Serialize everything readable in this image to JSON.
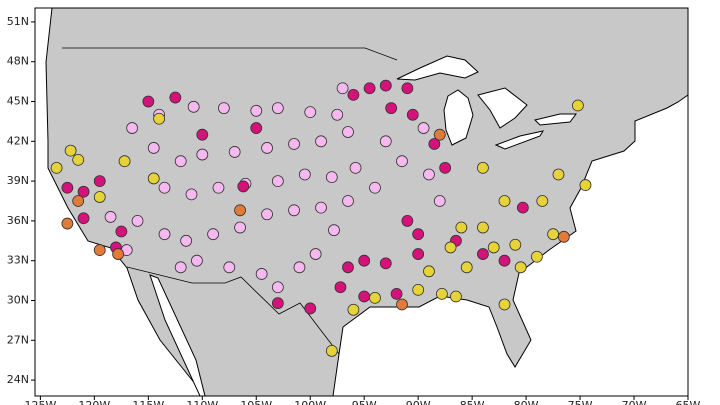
{
  "chart_data": {
    "type": "scatter",
    "xlim": [
      -125.5,
      -65
    ],
    "ylim": [
      22.8,
      52.05
    ],
    "xticks": [
      {
        "value": -125,
        "label": "125W"
      },
      {
        "value": -120,
        "label": "120W"
      },
      {
        "value": -115,
        "label": "115W"
      },
      {
        "value": -110,
        "label": "110W"
      },
      {
        "value": -105,
        "label": "105W"
      },
      {
        "value": -100,
        "label": "100W"
      },
      {
        "value": -95,
        "label": "95W"
      },
      {
        "value": -90,
        "label": "90W"
      },
      {
        "value": -85,
        "label": "85W"
      },
      {
        "value": -80,
        "label": "80W"
      },
      {
        "value": -75,
        "label": "75W"
      },
      {
        "value": -70,
        "label": "70W"
      },
      {
        "value": -65,
        "label": "65W"
      }
    ],
    "yticks": [
      {
        "value": 24,
        "label": "24N"
      },
      {
        "value": 27,
        "label": "27N"
      },
      {
        "value": 30,
        "label": "30N"
      },
      {
        "value": 33,
        "label": "33N"
      },
      {
        "value": 36,
        "label": "36N"
      },
      {
        "value": 39,
        "label": "39N"
      },
      {
        "value": 42,
        "label": "42N"
      },
      {
        "value": 45,
        "label": "45N"
      },
      {
        "value": 48,
        "label": "48N"
      },
      {
        "value": 51,
        "label": "51N"
      }
    ],
    "series": [
      {
        "color": "#f5b8ef",
        "x": [
          -110.8,
          -108,
          -105,
          -103,
          -100,
          -97.5,
          -96.5,
          -99,
          -101.5,
          -104,
          -107,
          -110,
          -112,
          -113.5,
          -111,
          -108.5,
          -106,
          -103,
          -100.5,
          -98,
          -95.8,
          -94,
          -96.5,
          -99,
          -101.5,
          -104,
          -106.5,
          -109,
          -111.5,
          -113.5,
          -116,
          -118.5,
          -117,
          -110.5,
          -107.5,
          -104.5,
          -101,
          -99.5,
          -97.8,
          -103,
          -112,
          -114.5,
          -116.5,
          -114,
          -93,
          -91.5,
          -89,
          -88,
          -89.5,
          -97
        ],
        "y": [
          44.6,
          44.5,
          44.3,
          44.5,
          44.2,
          44,
          42.7,
          42,
          41.8,
          41.5,
          41.2,
          41,
          40.5,
          38.5,
          38,
          38.5,
          38.8,
          39,
          39.5,
          39.3,
          40,
          38.5,
          37.5,
          37,
          36.8,
          36.5,
          35.5,
          35,
          34.5,
          35,
          36,
          36.3,
          33.8,
          33,
          32.5,
          32,
          32.5,
          33.5,
          35.3,
          31,
          32.5,
          41.5,
          43,
          44,
          42,
          40.5,
          39.5,
          37.5,
          43,
          46
        ]
      },
      {
        "color": "#d4127a",
        "x": [
          -112.5,
          -115,
          -96,
          -94.5,
          -93,
          -91,
          -92.5,
          -90.5,
          -88.5,
          -87.5,
          -91,
          -90,
          -95,
          -96.5,
          -93,
          -97.2,
          -95,
          -92,
          -103,
          -100,
          -122.5,
          -121,
          -119.5,
          -118,
          -117.5,
          -121,
          -105,
          -110,
          -106.2,
          -90,
          -86.5,
          -84,
          -82,
          -80.3
        ],
        "y": [
          45.3,
          45,
          45.5,
          46,
          46.2,
          46,
          44.5,
          44,
          41.8,
          40,
          36,
          35,
          33,
          32.5,
          32.8,
          31,
          30.3,
          30.5,
          29.8,
          29.4,
          38.5,
          38.2,
          39,
          34,
          35.2,
          36.2,
          43,
          42.5,
          38.6,
          33.5,
          34.5,
          33.5,
          33,
          37
        ]
      },
      {
        "color": "#e6d33a",
        "x": [
          -122.2,
          -123.5,
          -121.5,
          -119.5,
          -117.2,
          -114.5,
          -114,
          -84,
          -82,
          -86,
          -84,
          -87,
          -83,
          -81,
          -79,
          -77.5,
          -78.5,
          -87.8,
          -90,
          -94,
          -96,
          -82,
          -98,
          -89,
          -85.5,
          -80.5,
          -77,
          -74.5,
          -75.2,
          -86.5
        ],
        "y": [
          41.3,
          40,
          40.6,
          37.8,
          40.5,
          39.2,
          43.7,
          40,
          37.5,
          35.5,
          35.5,
          34,
          34,
          34.2,
          33.3,
          35,
          37.5,
          30.5,
          30.8,
          30.2,
          29.3,
          29.7,
          26.2,
          32.2,
          32.5,
          32.5,
          39.5,
          38.7,
          44.7,
          30.3
        ]
      },
      {
        "color": "#e07b39",
        "x": [
          -121.5,
          -122.5,
          -119.5,
          -117.8,
          -106.5,
          -88,
          -76.5,
          -91.5
        ],
        "y": [
          37.5,
          35.8,
          33.8,
          33.5,
          36.8,
          42.5,
          34.8,
          29.7
        ]
      }
    ]
  }
}
